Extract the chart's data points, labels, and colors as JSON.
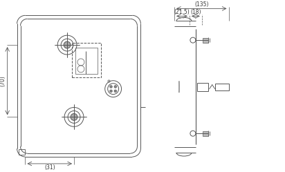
{
  "bg_color": "#ffffff",
  "line_color": "#555555",
  "line_color_dark": "#333333",
  "fig_width": 4.12,
  "fig_height": 2.49,
  "dpi": 100,
  "front_view": {
    "dim_70_label": "(70)",
    "dim_31_label": "(31)"
  },
  "side_view": {
    "dim_135_label": "(135)",
    "dim_215_label": "(21.5)",
    "dim_18_label": "(18)"
  }
}
